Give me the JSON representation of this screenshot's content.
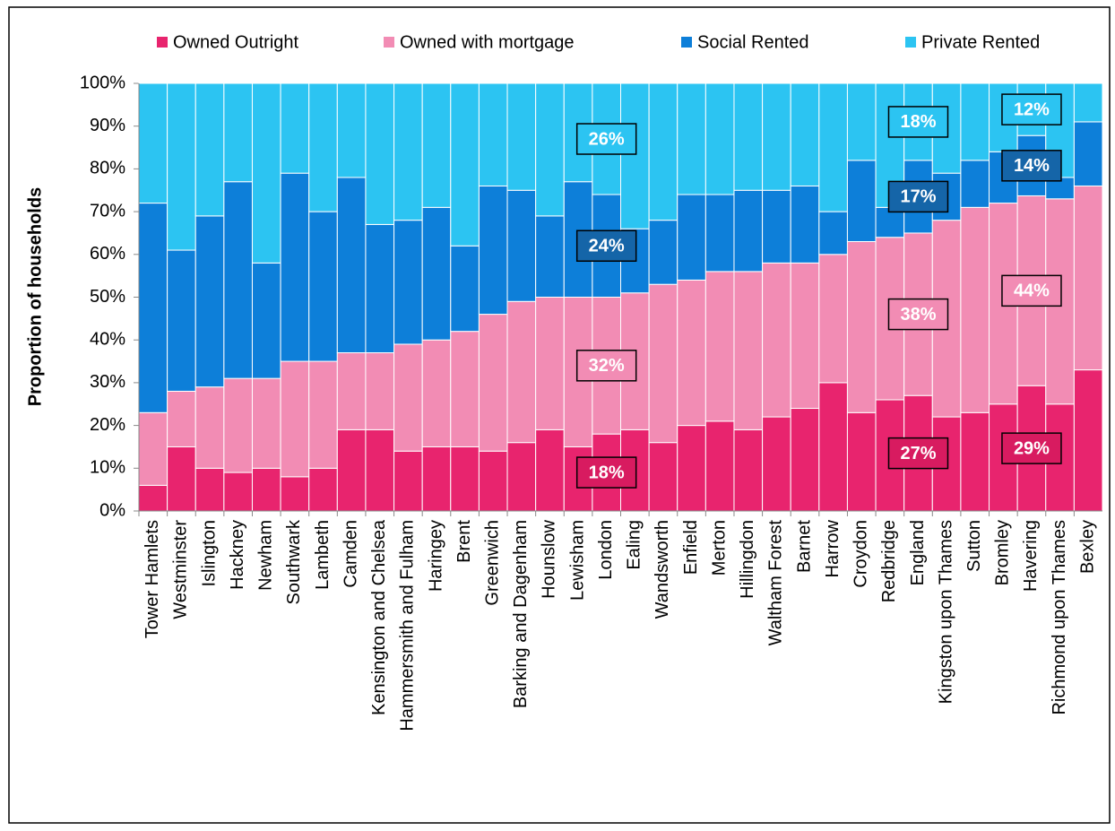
{
  "chart_data": {
    "type": "stacked_bar",
    "y_axis_label": "Proportion of households",
    "categories": [
      "Tower Hamlets",
      "Westminster",
      "Islington",
      "Hackney",
      "Newham",
      "Southwark",
      "Lambeth",
      "Camden",
      "Kensington and Chelsea",
      "Hammersmith and Fulham",
      "Haringey",
      "Brent",
      "Greenwich",
      "Barking and Dagenham",
      "Hounslow",
      "Lewisham",
      "London",
      "Ealing",
      "Wandsworth",
      "Enfield",
      "Merton",
      "Hillingdon",
      "Waltham Forest",
      "Barnet",
      "Harrow",
      "Croydon",
      "Redbridge",
      "England",
      "Kingston upon Thames",
      "Sutton",
      "Bromley",
      "Havering",
      "Richmond upon Thames",
      "Bexley"
    ],
    "series": [
      {
        "name": "Owned Outright",
        "color": "#e8246e",
        "values": [
          6,
          15,
          10,
          9,
          10,
          8,
          10,
          19,
          19,
          14,
          15,
          15,
          14,
          16,
          19,
          15,
          18,
          19,
          16,
          20,
          21,
          19,
          22,
          24,
          30,
          23,
          26,
          27,
          22,
          23,
          25,
          29.3,
          25,
          33
        ],
        "value_labels": [
          null,
          null,
          null,
          null,
          null,
          null,
          null,
          null,
          null,
          null,
          null,
          null,
          null,
          null,
          null,
          null,
          "18%",
          null,
          null,
          null,
          null,
          null,
          null,
          null,
          null,
          null,
          null,
          "27%",
          null,
          null,
          null,
          "29%",
          null,
          null
        ]
      },
      {
        "name": "Owned with mortgage",
        "color": "#f28cb4",
        "values": [
          17,
          13,
          19,
          22,
          21,
          27,
          25,
          18,
          18,
          25,
          25,
          27,
          32,
          33,
          31,
          35,
          32,
          32,
          37,
          34,
          35,
          37,
          36,
          34,
          30,
          40,
          38,
          38,
          46,
          48,
          47,
          44.4,
          48,
          43
        ],
        "value_labels": [
          null,
          null,
          null,
          null,
          null,
          null,
          null,
          null,
          null,
          null,
          null,
          null,
          null,
          null,
          null,
          null,
          "32%",
          null,
          null,
          null,
          null,
          null,
          null,
          null,
          null,
          null,
          null,
          "38%",
          null,
          null,
          null,
          "44%",
          null,
          null
        ]
      },
      {
        "name": "Social Rented",
        "color": "#0d7fd9",
        "values": [
          49,
          33,
          40,
          46,
          27,
          44,
          35,
          41,
          30,
          29,
          31,
          20,
          30,
          26,
          19,
          27,
          24,
          15,
          15,
          20,
          18,
          19,
          17,
          18,
          10,
          19,
          7,
          17,
          11,
          11,
          12,
          14.1,
          5,
          15
        ],
        "value_labels": [
          null,
          null,
          null,
          null,
          null,
          null,
          null,
          null,
          null,
          null,
          null,
          null,
          null,
          null,
          null,
          null,
          "24%",
          null,
          null,
          null,
          null,
          null,
          null,
          null,
          null,
          null,
          null,
          "17%",
          null,
          null,
          null,
          "14%",
          null,
          null
        ]
      },
      {
        "name": "Private Rented",
        "color": "#2cc4f2",
        "values": [
          28,
          39,
          31,
          23,
          42,
          21,
          30,
          22,
          33,
          32,
          29,
          38,
          24,
          25,
          31,
          23,
          26,
          34,
          32,
          26,
          26,
          25,
          25,
          24,
          30,
          18,
          29,
          18,
          21,
          18,
          16,
          12.2,
          22,
          9
        ],
        "value_labels": [
          null,
          null,
          null,
          null,
          null,
          null,
          null,
          null,
          null,
          null,
          null,
          null,
          null,
          null,
          null,
          null,
          "26%",
          null,
          null,
          null,
          null,
          null,
          null,
          null,
          null,
          null,
          null,
          "18%",
          null,
          null,
          null,
          "12%",
          null,
          null
        ]
      }
    ],
    "ylim": [
      0,
      100
    ],
    "yticks": [
      {
        "value": 0,
        "label": "0%"
      },
      {
        "value": 10,
        "label": "10%"
      },
      {
        "value": 20,
        "label": "20%"
      },
      {
        "value": 30,
        "label": "30%"
      },
      {
        "value": 40,
        "label": "40%"
      },
      {
        "value": 50,
        "label": "50%"
      },
      {
        "value": 60,
        "label": "60%"
      },
      {
        "value": 70,
        "label": "70%"
      },
      {
        "value": 80,
        "label": "80%"
      },
      {
        "value": 90,
        "label": "90%"
      },
      {
        "value": 100,
        "label": "100%"
      }
    ],
    "label_box_colors": [
      "#d81b60",
      "#f28cb4",
      "#1565a8",
      "#2cc4f2"
    ],
    "legend": "top"
  }
}
